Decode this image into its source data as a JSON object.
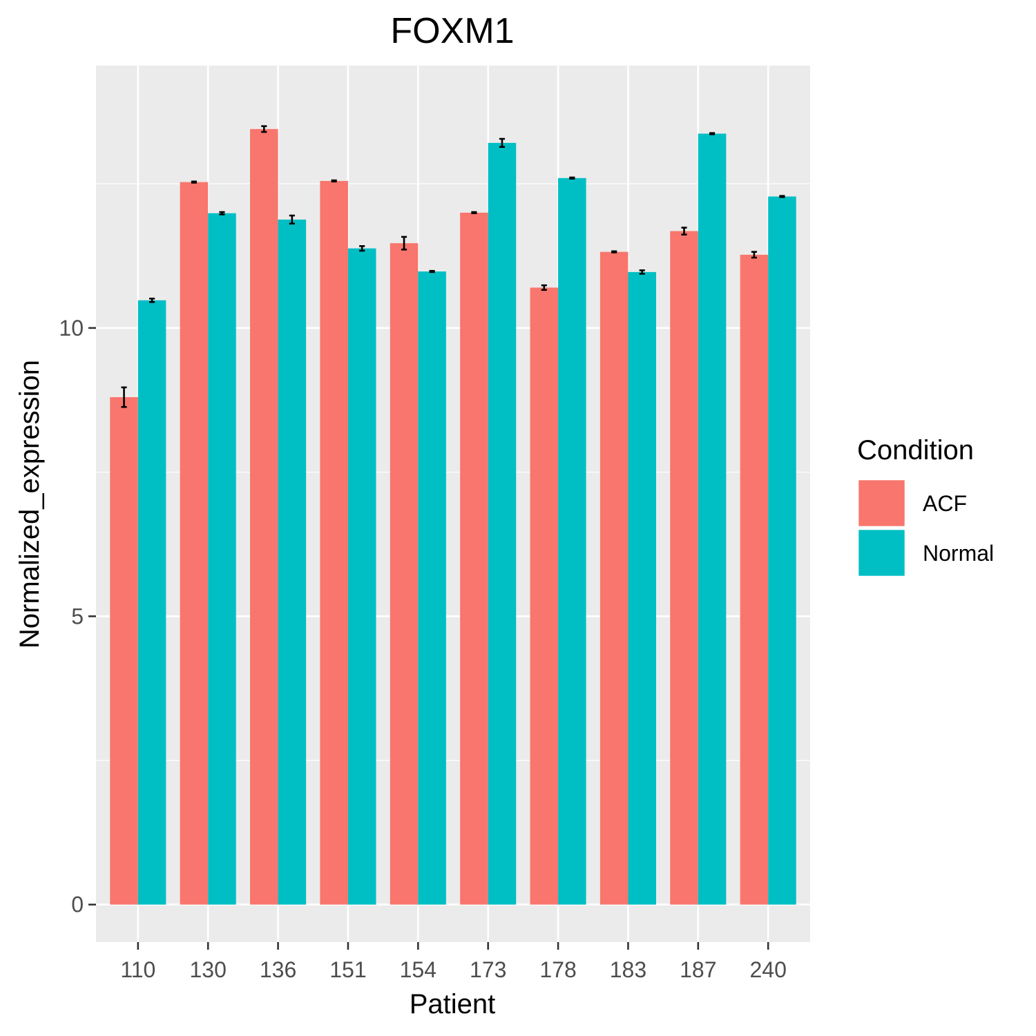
{
  "chart_data": {
    "type": "bar",
    "title": "FOXM1",
    "xlabel": "Patient",
    "ylabel": "Normalized_expression",
    "ylim": [
      -0.65,
      14.55
    ],
    "yticks": [
      0,
      5,
      10
    ],
    "y_tick_labels": [
      "0",
      "5",
      "10"
    ],
    "grid": true,
    "categories": [
      "110",
      "130",
      "136",
      "151",
      "154",
      "173",
      "178",
      "183",
      "187",
      "240"
    ],
    "series": [
      {
        "name": "ACF",
        "color": "#F8766D",
        "values": [
          8.8,
          12.53,
          13.45,
          12.55,
          11.47,
          12.0,
          10.7,
          11.32,
          11.68,
          11.27
        ],
        "errors": [
          0.17,
          0.01,
          0.05,
          0.01,
          0.11,
          0.01,
          0.04,
          0.01,
          0.06,
          0.05
        ]
      },
      {
        "name": "Normal",
        "color": "#00BFC4",
        "values": [
          10.48,
          11.99,
          11.88,
          11.38,
          10.98,
          13.21,
          12.6,
          10.97,
          13.37,
          12.28
        ],
        "errors": [
          0.03,
          0.02,
          0.07,
          0.04,
          0.01,
          0.07,
          0.01,
          0.03,
          0.01,
          0.01
        ]
      }
    ],
    "legend": {
      "title": "Condition",
      "position": "right"
    }
  },
  "colors": {
    "panel_background": "#EBEBEB",
    "grid_major": "#FFFFFF",
    "error_bar": "#000000"
  }
}
